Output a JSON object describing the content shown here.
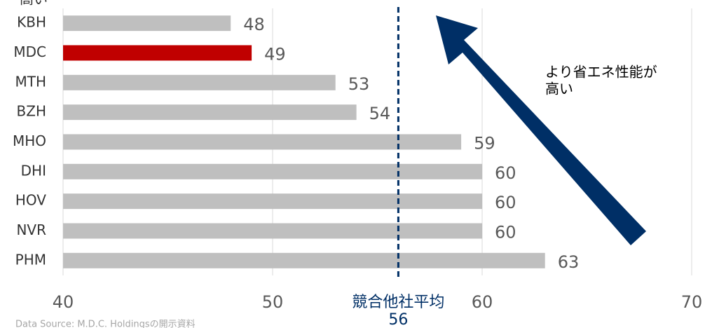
{
  "chart_data": {
    "type": "bar",
    "orientation": "horizontal",
    "top_note": "高い",
    "categories": [
      "KBH",
      "MDC",
      "MTH",
      "BZH",
      "MHO",
      "DHI",
      "HOV",
      "NVR",
      "PHM"
    ],
    "values": [
      48,
      49,
      53,
      54,
      59,
      60,
      60,
      60,
      63
    ],
    "colors": [
      "#bfbfbf",
      "#c00000",
      "#bfbfbf",
      "#bfbfbf",
      "#bfbfbf",
      "#bfbfbf",
      "#bfbfbf",
      "#bfbfbf",
      "#bfbfbf"
    ],
    "xlim": [
      40,
      70
    ],
    "xticks": [
      40,
      50,
      60,
      70
    ],
    "grid": true,
    "average": {
      "label": "競合他社平均",
      "value": 56,
      "color": "#002f66"
    },
    "arrow_annotation": [
      "より省エネ性能が",
      "高い"
    ],
    "arrow_color": "#002f66",
    "source": "Data Source: M.D.C. Holdingsの開示資料"
  }
}
